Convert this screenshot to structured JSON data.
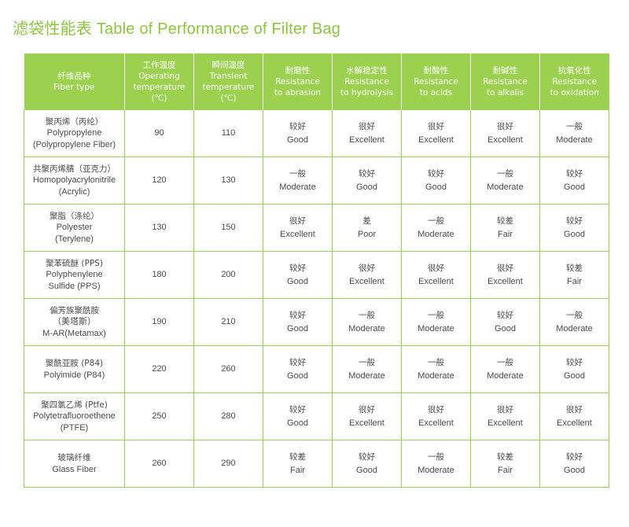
{
  "title": "滤袋性能表 Table of Performance of Filter Bag",
  "headers": [
    [
      "纤维品种",
      "Fiber type"
    ],
    [
      "工作温度",
      "Operating",
      "temperature",
      "(℃)"
    ],
    [
      "瞬间温度",
      "Transient",
      "temperature",
      "(℃)"
    ],
    [
      "耐磨性",
      "Resistance",
      "to abrasion"
    ],
    [
      "水解稳定性",
      "Resistance",
      "to hydrolysis"
    ],
    [
      "耐酸性",
      "Resistance",
      "to acids"
    ],
    [
      "耐碱性",
      "Resistance",
      "to alkalis"
    ],
    [
      "抗氧化性",
      "Resistance",
      "to oxidation"
    ]
  ],
  "rows": [
    {
      "fiber": [
        "聚丙烯（丙纶）",
        "Polypropylene",
        "(Polypropylene Fiber)"
      ],
      "operating": "90",
      "transient": "110",
      "abrasion": [
        "较好",
        "Good"
      ],
      "hydrolysis": [
        "很好",
        "Excellent"
      ],
      "acids": [
        "很好",
        "Excellent"
      ],
      "alkalis": [
        "很好",
        "Excellent"
      ],
      "oxidation": [
        "一般",
        "Moderate"
      ]
    },
    {
      "fiber": [
        "共聚丙烯腈（亚克力）",
        "Homopolyacrylonitrile",
        "(Acrylic)"
      ],
      "operating": "120",
      "transient": "130",
      "abrasion": [
        "一般",
        "Moderate"
      ],
      "hydrolysis": [
        "较好",
        "Good"
      ],
      "acids": [
        "较好",
        "Good"
      ],
      "alkalis": [
        "一般",
        "Moderate"
      ],
      "oxidation": [
        "较好",
        "Good"
      ]
    },
    {
      "fiber": [
        "聚脂（涤纶）",
        "Polyester",
        "(Terylene)"
      ],
      "operating": "130",
      "transient": "150",
      "abrasion": [
        "很好",
        "Excellent"
      ],
      "hydrolysis": [
        "差",
        "Poor"
      ],
      "acids": [
        "一般",
        "Moderate"
      ],
      "alkalis": [
        "较差",
        "Fair"
      ],
      "oxidation": [
        "较好",
        "Good"
      ]
    },
    {
      "fiber": [
        "聚苯硫醚 (PPS)",
        "Polyphenylene",
        "Sulfide (PPS)"
      ],
      "operating": "180",
      "transient": "200",
      "abrasion": [
        "较好",
        "Good"
      ],
      "hydrolysis": [
        "很好",
        "Excellent"
      ],
      "acids": [
        "很好",
        "Excellent"
      ],
      "alkalis": [
        "很好",
        "Excellent"
      ],
      "oxidation": [
        "较差",
        "Fair"
      ]
    },
    {
      "fiber": [
        "偏芳族聚酰胺",
        "（美塔斯）",
        "M-AR(Metamax)"
      ],
      "operating": "190",
      "transient": "210",
      "abrasion": [
        "较好",
        "Good"
      ],
      "hydrolysis": [
        "一般",
        "Moderate"
      ],
      "acids": [
        "一般",
        "Moderate"
      ],
      "alkalis": [
        "较好",
        "Good"
      ],
      "oxidation": [
        "一般",
        "Moderate"
      ]
    },
    {
      "fiber": [
        "聚酰亚胺 (P84)",
        "Polyimide (P84)"
      ],
      "operating": "220",
      "transient": "260",
      "abrasion": [
        "较好",
        "Good"
      ],
      "hydrolysis": [
        "一般",
        "Moderate"
      ],
      "acids": [
        "一般",
        "Moderate"
      ],
      "alkalis": [
        "一般",
        "Moderate"
      ],
      "oxidation": [
        "较好",
        "Good"
      ]
    },
    {
      "fiber": [
        "聚四氯乙烯 (Ptfe)",
        "Polytetrafluoroethene",
        "(PTFE)"
      ],
      "operating": "250",
      "transient": "280",
      "abrasion": [
        "较好",
        "Good"
      ],
      "hydrolysis": [
        "很好",
        "Excellent"
      ],
      "acids": [
        "很好",
        "Excellent"
      ],
      "alkalis": [
        "很好",
        "Excellent"
      ],
      "oxidation": [
        "很好",
        "Excellent"
      ]
    },
    {
      "fiber": [
        "玻璃纤维",
        "Glass Fiber"
      ],
      "operating": "260",
      "transient": "290",
      "abrasion": [
        "较差",
        "Fair"
      ],
      "hydrolysis": [
        "较好",
        "Good"
      ],
      "acids": [
        "一般",
        "Moderate"
      ],
      "alkalis": [
        "较差",
        "Fair"
      ],
      "oxidation": [
        "较好",
        "Good"
      ]
    }
  ]
}
